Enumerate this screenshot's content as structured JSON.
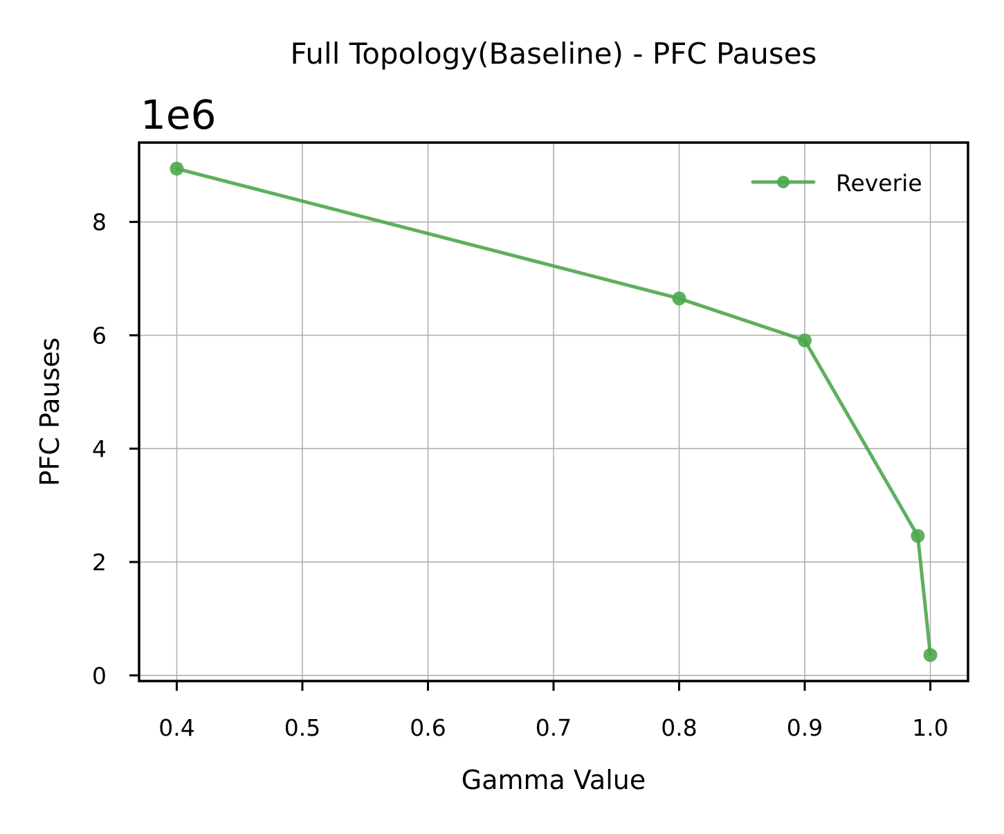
{
  "chart_data": {
    "type": "line",
    "title": "Full Topology(Baseline) - PFC Pauses",
    "xlabel": "Gamma Value",
    "ylabel": "PFC Pauses",
    "y_offset_text": "1e6",
    "xlim": [
      0.37,
      1.03
    ],
    "ylim": [
      -0.1,
      9.4
    ],
    "y_scale_factor": 1000000,
    "x_ticks": [
      0.4,
      0.5,
      0.6,
      0.7,
      0.8,
      0.9,
      1.0
    ],
    "x_tick_labels": [
      "0.4",
      "0.5",
      "0.6",
      "0.7",
      "0.8",
      "0.9",
      "1.0"
    ],
    "y_ticks": [
      0,
      2,
      4,
      6,
      8
    ],
    "y_tick_labels": [
      "0",
      "2",
      "4",
      "6",
      "8"
    ],
    "grid": true,
    "legend_position": "top-right",
    "series": [
      {
        "name": "Reverie",
        "color": "#4da64d",
        "marker": "circle",
        "x": [
          0.4,
          0.8,
          0.9,
          0.99,
          1.0
        ],
        "y": [
          8.94,
          6.65,
          5.91,
          2.46,
          0.36
        ]
      }
    ]
  }
}
